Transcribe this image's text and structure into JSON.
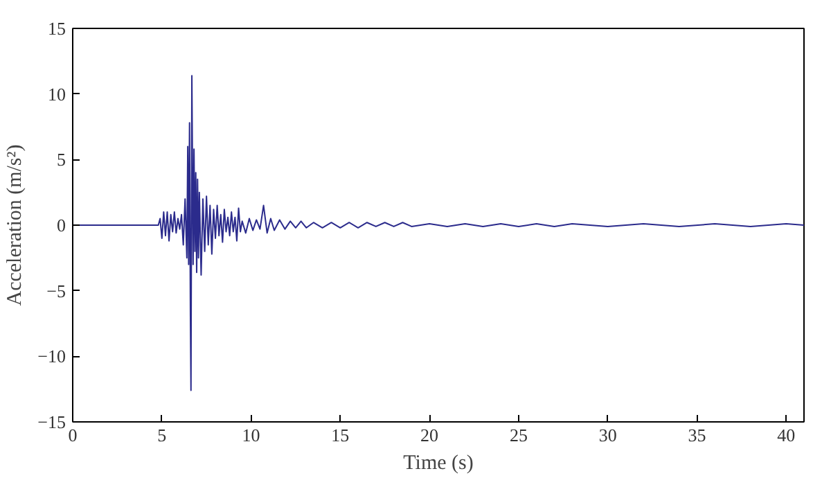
{
  "chart_data": {
    "type": "line",
    "xlabel": "Time (s)",
    "ylabel": "Acceleration (m/s²)",
    "xlim": [
      0,
      41
    ],
    "ylim": [
      -15,
      15
    ],
    "xticks": [
      0,
      5,
      10,
      15,
      20,
      25,
      30,
      35,
      40
    ],
    "yticks": [
      -15,
      -10,
      -5,
      0,
      5,
      10,
      15
    ],
    "grid": false,
    "series": [
      {
        "color": "#2b2b8c",
        "x": [
          0,
          4.8,
          4.9,
          5.0,
          5.1,
          5.2,
          5.3,
          5.4,
          5.5,
          5.6,
          5.7,
          5.8,
          5.9,
          6.0,
          6.1,
          6.2,
          6.3,
          6.4,
          6.45,
          6.5,
          6.55,
          6.6,
          6.63,
          6.68,
          6.75,
          6.8,
          6.85,
          6.9,
          6.95,
          7.0,
          7.05,
          7.1,
          7.2,
          7.3,
          7.4,
          7.5,
          7.6,
          7.7,
          7.8,
          7.9,
          8.0,
          8.1,
          8.2,
          8.3,
          8.4,
          8.5,
          8.6,
          8.7,
          8.8,
          8.9,
          9.0,
          9.1,
          9.2,
          9.3,
          9.4,
          9.5,
          9.7,
          9.9,
          10.1,
          10.3,
          10.5,
          10.7,
          10.9,
          11.1,
          11.3,
          11.6,
          11.9,
          12.2,
          12.5,
          12.8,
          13.1,
          13.5,
          14,
          14.5,
          15,
          15.5,
          16,
          16.5,
          17,
          17.5,
          18,
          18.5,
          19,
          20,
          21,
          22,
          23,
          24,
          25,
          26,
          27,
          28,
          30,
          32,
          34,
          36,
          38,
          40,
          41
        ],
        "values": [
          0,
          0,
          0.5,
          -1,
          1,
          -0.8,
          1,
          -1.2,
          0.8,
          -0.5,
          1,
          -0.6,
          0.5,
          -0.3,
          0.8,
          -1.5,
          2,
          -2.5,
          6,
          -3,
          7.8,
          -7,
          -12.6,
          11.4,
          -3,
          5.8,
          -2,
          4,
          -3.6,
          3.5,
          -2.5,
          2.5,
          -3.8,
          2,
          -2,
          2.2,
          -1.5,
          1.5,
          -2.2,
          1.2,
          -1,
          1.5,
          -0.8,
          0.8,
          -1.3,
          1.2,
          -0.5,
          0.6,
          -0.8,
          1,
          -0.5,
          0.6,
          -1.2,
          1.3,
          -0.5,
          0.3,
          -0.6,
          0.5,
          -0.4,
          0.4,
          -0.3,
          1.5,
          -0.6,
          0.5,
          -0.4,
          0.4,
          -0.3,
          0.3,
          -0.2,
          0.3,
          -0.2,
          0.2,
          -0.2,
          0.2,
          -0.2,
          0.2,
          -0.2,
          0.2,
          -0.1,
          0.2,
          -0.1,
          0.2,
          -0.1,
          0.1,
          -0.1,
          0.1,
          -0.1,
          0.1,
          -0.1,
          0.1,
          -0.1,
          0.1,
          -0.1,
          0.1,
          -0.1,
          0.1,
          -0.1,
          0.1,
          0
        ]
      }
    ]
  }
}
